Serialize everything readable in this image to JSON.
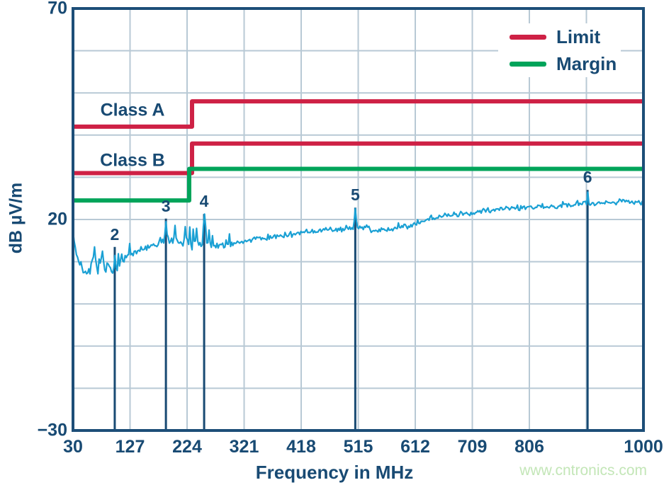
{
  "watermark": {
    "text": "www.cntronics.com"
  },
  "colors": {
    "navy": "#184a73",
    "red": "#ce2145",
    "green": "#00a45a",
    "trace_cyan": "#1aa0d4",
    "grid": "#b8c9d5",
    "watermark_green": "#c3e6b7",
    "background": "#ffffff"
  },
  "chart_data": {
    "type": "line",
    "title": "",
    "xlabel": "Frequency in MHz",
    "ylabel": "dB µV/m",
    "xlim": [
      30,
      1000
    ],
    "ylim": [
      -30,
      70
    ],
    "grid": true,
    "legend_position": "top-right",
    "x_ticks": [
      {
        "label": "30",
        "mhz": 30
      },
      {
        "label": "127",
        "mhz": 127
      },
      {
        "label": "224",
        "mhz": 224
      },
      {
        "label": "321",
        "mhz": 321
      },
      {
        "label": "418",
        "mhz": 418
      },
      {
        "label": "515",
        "mhz": 515
      },
      {
        "label": "612",
        "mhz": 612
      },
      {
        "label": "709",
        "mhz": 709
      },
      {
        "label": "806",
        "mhz": 806
      },
      {
        "label": "1000",
        "mhz": 1000
      }
    ],
    "x_gridlines_mhz": [
      127,
      224,
      321,
      418,
      515,
      612,
      709,
      806,
      903
    ],
    "y_ticks": [
      {
        "label": "70",
        "db": 70
      },
      {
        "label": "20",
        "db": 20
      },
      {
        "label": "−30",
        "db": -30
      }
    ],
    "y_gridline_step_db": 10,
    "legend": [
      {
        "label": "Limit",
        "color": "#ce2145"
      },
      {
        "label": "Margin",
        "color": "#00a45a"
      }
    ],
    "limit_lines": [
      {
        "name": "Class A",
        "kind": "limit",
        "color": "#ce2145",
        "step_mhz": 230,
        "before_db": 42,
        "after_db": 48
      },
      {
        "name": "Class B",
        "kind": "limit",
        "color": "#ce2145",
        "step_mhz": 230,
        "before_db": 31,
        "after_db": 38
      },
      {
        "name": "Margin",
        "kind": "margin",
        "color": "#00a45a",
        "step_mhz": 230,
        "before_db": 24.5,
        "after_db": 32
      }
    ],
    "markers": [
      {
        "label": "2",
        "mhz": 101,
        "peak_db": 11.5,
        "line_top_db": 13.5
      },
      {
        "label": "3",
        "mhz": 188,
        "peak_db": 19.5,
        "line_top_db": 20.2
      },
      {
        "label": "4",
        "mhz": 253,
        "peak_db": 21.3,
        "line_top_db": 21.3
      },
      {
        "label": "5",
        "mhz": 510,
        "peak_db": 22.6,
        "line_top_db": 22.8
      },
      {
        "label": "6",
        "mhz": 905,
        "peak_db": 26.5,
        "line_top_db": 27.0
      }
    ],
    "trace": {
      "name": "measured-emissions",
      "color": "#1aa0d4",
      "envelope_mhz_db": [
        [
          30,
          17
        ],
        [
          34,
          13
        ],
        [
          40,
          9.5
        ],
        [
          48,
          7.8
        ],
        [
          54,
          8.2
        ],
        [
          60,
          8.0
        ],
        [
          66,
          12.5
        ],
        [
          70,
          8.5
        ],
        [
          74,
          7.5
        ],
        [
          80,
          11.5
        ],
        [
          84,
          8
        ],
        [
          88,
          9
        ],
        [
          95,
          8.5
        ],
        [
          101,
          8.2
        ],
        [
          106,
          9
        ],
        [
          112,
          10
        ],
        [
          120,
          11
        ],
        [
          130,
          12
        ],
        [
          140,
          12.5
        ],
        [
          150,
          13
        ],
        [
          160,
          13.8
        ],
        [
          170,
          14.2
        ],
        [
          180,
          14.8
        ],
        [
          188,
          15
        ],
        [
          200,
          14.5
        ],
        [
          215,
          14.5
        ],
        [
          230,
          14
        ],
        [
          245,
          14
        ],
        [
          260,
          14.2
        ],
        [
          275,
          13.8
        ],
        [
          290,
          14
        ],
        [
          310,
          14.5
        ],
        [
          330,
          15
        ],
        [
          350,
          15.5
        ],
        [
          375,
          16
        ],
        [
          400,
          16.5
        ],
        [
          430,
          17.2
        ],
        [
          460,
          17.6
        ],
        [
          490,
          17.8
        ],
        [
          510,
          17.8
        ],
        [
          525,
          18.3
        ],
        [
          540,
          17.3
        ],
        [
          560,
          17.6
        ],
        [
          580,
          17.8
        ],
        [
          600,
          18.5
        ],
        [
          620,
          19.5
        ],
        [
          640,
          20.2
        ],
        [
          660,
          20.6
        ],
        [
          690,
          21.2
        ],
        [
          720,
          21.8
        ],
        [
          750,
          22.3
        ],
        [
          780,
          22.8
        ],
        [
          810,
          22.8
        ],
        [
          840,
          23.2
        ],
        [
          870,
          23.5
        ],
        [
          900,
          23.8
        ],
        [
          930,
          23.8
        ],
        [
          960,
          24.2
        ],
        [
          1000,
          24.3
        ]
      ],
      "extra_spikes_mhz_db": [
        [
          66,
          13.5
        ],
        [
          80,
          12.5
        ],
        [
          126,
          14.3
        ],
        [
          204,
          18.6
        ],
        [
          220,
          18.3
        ],
        [
          240,
          17.9
        ],
        [
          262,
          17.5
        ],
        [
          296,
          16.6
        ],
        [
          584,
          19.2
        ]
      ]
    }
  }
}
